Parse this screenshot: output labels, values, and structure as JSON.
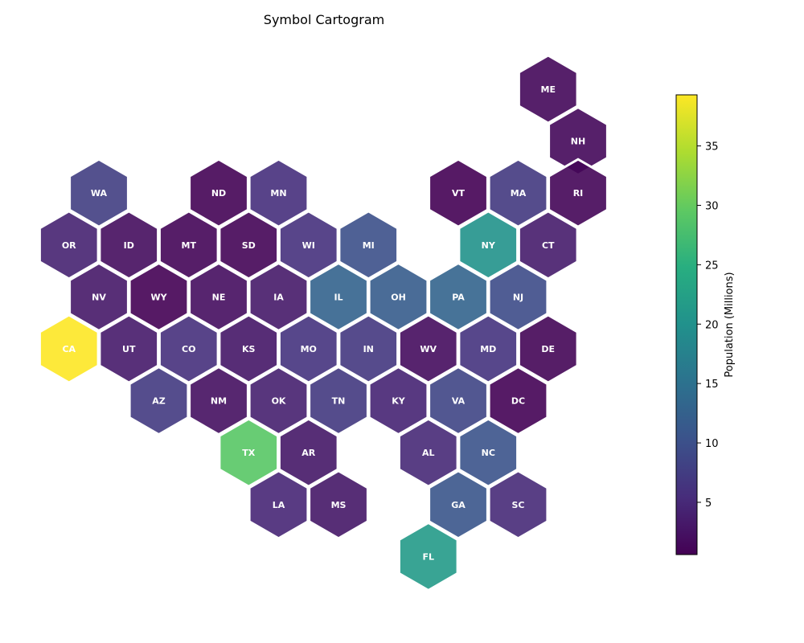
{
  "chart_data": {
    "type": "heatmap",
    "title": "Symbol Cartogram",
    "colorbar": {
      "label": "Population (Millions)",
      "min": 0.6,
      "max": 39.3,
      "ticks": [
        5,
        10,
        15,
        20,
        25,
        30,
        35
      ],
      "colormap": "viridis"
    },
    "states": [
      {
        "abbr": "ME",
        "col": 7.5,
        "row": 0,
        "value": 1.36
      },
      {
        "abbr": "NH",
        "col": 8,
        "row": 1,
        "value": 1.38
      },
      {
        "abbr": "WA",
        "col": 0,
        "row": 2,
        "value": 7.7
      },
      {
        "abbr": "ND",
        "col": 2,
        "row": 2,
        "value": 0.78
      },
      {
        "abbr": "MN",
        "col": 3,
        "row": 2,
        "value": 5.7
      },
      {
        "abbr": "VT",
        "col": 6,
        "row": 2,
        "value": 0.64
      },
      {
        "abbr": "MA",
        "col": 7,
        "row": 2,
        "value": 7.0
      },
      {
        "abbr": "RI",
        "col": 8,
        "row": 2,
        "value": 1.1
      },
      {
        "abbr": "OR",
        "col": -0.5,
        "row": 3,
        "value": 4.2
      },
      {
        "abbr": "ID",
        "col": 0.5,
        "row": 3,
        "value": 1.9
      },
      {
        "abbr": "MT",
        "col": 1.5,
        "row": 3,
        "value": 1.1
      },
      {
        "abbr": "SD",
        "col": 2.5,
        "row": 3,
        "value": 0.9
      },
      {
        "abbr": "WI",
        "col": 3.5,
        "row": 3,
        "value": 5.9
      },
      {
        "abbr": "MI",
        "col": 4.5,
        "row": 3,
        "value": 10.0
      },
      {
        "abbr": "NY",
        "col": 6.5,
        "row": 3,
        "value": 20.2
      },
      {
        "abbr": "CT",
        "col": 7.5,
        "row": 3,
        "value": 3.6
      },
      {
        "abbr": "NV",
        "col": 0,
        "row": 4,
        "value": 3.1
      },
      {
        "abbr": "WY",
        "col": 1,
        "row": 4,
        "value": 0.58
      },
      {
        "abbr": "NE",
        "col": 2,
        "row": 4,
        "value": 1.96
      },
      {
        "abbr": "IA",
        "col": 3,
        "row": 4,
        "value": 3.2
      },
      {
        "abbr": "IL",
        "col": 4,
        "row": 4,
        "value": 12.8
      },
      {
        "abbr": "OH",
        "col": 5,
        "row": 4,
        "value": 11.8
      },
      {
        "abbr": "PA",
        "col": 6,
        "row": 4,
        "value": 13.0
      },
      {
        "abbr": "NJ",
        "col": 7,
        "row": 4,
        "value": 9.3
      },
      {
        "abbr": "CA",
        "col": -0.5,
        "row": 5,
        "value": 39.3
      },
      {
        "abbr": "UT",
        "col": 0.5,
        "row": 5,
        "value": 3.3
      },
      {
        "abbr": "CO",
        "col": 1.5,
        "row": 5,
        "value": 5.8
      },
      {
        "abbr": "KS",
        "col": 2.5,
        "row": 5,
        "value": 2.9
      },
      {
        "abbr": "MO",
        "col": 3.5,
        "row": 5,
        "value": 6.2
      },
      {
        "abbr": "IN",
        "col": 4.5,
        "row": 5,
        "value": 6.8
      },
      {
        "abbr": "WV",
        "col": 5.5,
        "row": 5,
        "value": 1.8
      },
      {
        "abbr": "MD",
        "col": 6.5,
        "row": 5,
        "value": 6.2
      },
      {
        "abbr": "DE",
        "col": 7.5,
        "row": 5,
        "value": 1.0
      },
      {
        "abbr": "AZ",
        "col": 1,
        "row": 6,
        "value": 7.2
      },
      {
        "abbr": "NM",
        "col": 2,
        "row": 6,
        "value": 2.1
      },
      {
        "abbr": "OK",
        "col": 3,
        "row": 6,
        "value": 4.0
      },
      {
        "abbr": "TN",
        "col": 4,
        "row": 6,
        "value": 6.9
      },
      {
        "abbr": "KY",
        "col": 5,
        "row": 6,
        "value": 4.5
      },
      {
        "abbr": "VA",
        "col": 6,
        "row": 6,
        "value": 8.6
      },
      {
        "abbr": "DC",
        "col": 7,
        "row": 6,
        "value": 0.69
      },
      {
        "abbr": "TX",
        "col": 2.5,
        "row": 7,
        "value": 29.1
      },
      {
        "abbr": "AR",
        "col": 3.5,
        "row": 7,
        "value": 3.0
      },
      {
        "abbr": "AL",
        "col": 5.5,
        "row": 7,
        "value": 5.0
      },
      {
        "abbr": "NC",
        "col": 6.5,
        "row": 7,
        "value": 10.4
      },
      {
        "abbr": "LA",
        "col": 3,
        "row": 8,
        "value": 4.7
      },
      {
        "abbr": "MS",
        "col": 4,
        "row": 8,
        "value": 3.0
      },
      {
        "abbr": "GA",
        "col": 6,
        "row": 8,
        "value": 10.7
      },
      {
        "abbr": "SC",
        "col": 7,
        "row": 8,
        "value": 5.1
      },
      {
        "abbr": "FL",
        "col": 5.5,
        "row": 9,
        "value": 21.5
      }
    ]
  }
}
